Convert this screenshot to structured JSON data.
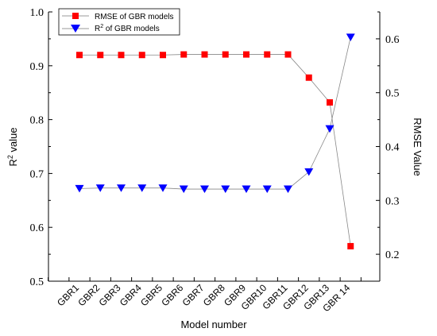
{
  "chart_data": {
    "type": "line",
    "categories": [
      "GBR1",
      "GBR2",
      "GBR3",
      "GBR4",
      "GBR5",
      "GBR6",
      "GBR7",
      "GBR8",
      "GBR9",
      "GBR10",
      "GBR11",
      "GBR12",
      "GBR13",
      "GBR 14"
    ],
    "xlabel": "Model number",
    "ylabel_left": "R",
    "ylabel_left_sup": "2",
    "ylabel_left_suffix": " value",
    "ylabel_right": "RMSE Value",
    "ylim_left": [
      0.5,
      1.0
    ],
    "ylim_right": [
      0.15,
      0.65
    ],
    "yticks_left": [
      "0.5",
      "0.6",
      "0.7",
      "0.8",
      "0.9",
      "1.0"
    ],
    "yticks_right": [
      "0.2",
      "0.3",
      "0.4",
      "0.5",
      "0.6"
    ],
    "grid": false,
    "legend_position": "top-left",
    "series": [
      {
        "name": "RMSE of GBR models",
        "legend_main": "RMSE of GBR models",
        "axis": "right",
        "marker": "square",
        "color": "#ff0000",
        "values": [
          0.57,
          0.57,
          0.57,
          0.57,
          0.57,
          0.571,
          0.571,
          0.571,
          0.571,
          0.571,
          0.571,
          0.528,
          0.482,
          0.215
        ]
      },
      {
        "name": "R2 of GBR models",
        "legend_main": "R",
        "legend_sup": "2",
        "legend_rest": " of GBR models",
        "axis": "left",
        "marker": "triangle-down",
        "color": "#0000ff",
        "values": [
          0.672,
          0.673,
          0.673,
          0.673,
          0.673,
          0.671,
          0.671,
          0.671,
          0.671,
          0.671,
          0.671,
          0.703,
          0.783,
          0.953
        ]
      }
    ]
  }
}
